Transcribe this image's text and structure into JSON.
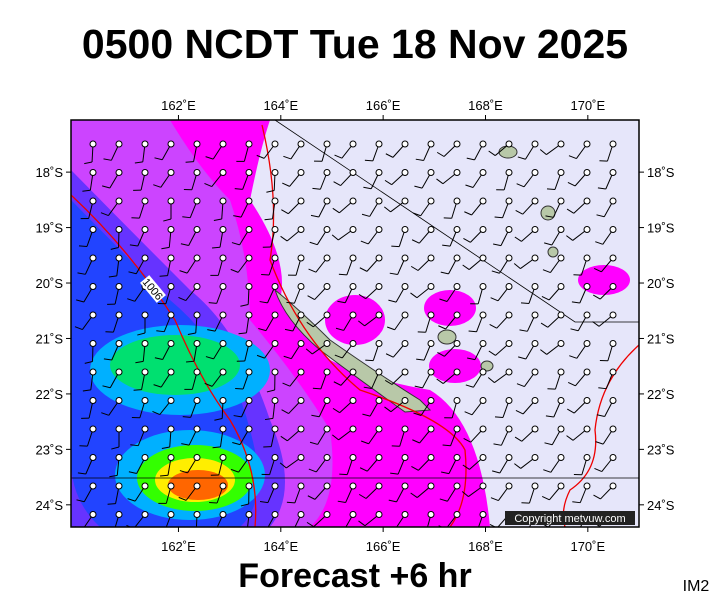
{
  "header": {
    "title": "0500 NCDT Tue 18 Nov 2025"
  },
  "map": {
    "xlim": [
      159.9,
      171
    ],
    "ylim": [
      -17.06,
      -24.4
    ],
    "lon_ticks": [
      {
        "value": 162,
        "label": "162˚E"
      },
      {
        "value": 164,
        "label": "164˚E"
      },
      {
        "value": 166,
        "label": "166˚E"
      },
      {
        "value": 168,
        "label": "168˚E"
      },
      {
        "value": 170,
        "label": "170˚E"
      }
    ],
    "lat_ticks": [
      {
        "value": -18,
        "label": "18˚S"
      },
      {
        "value": -19,
        "label": "19˚S"
      },
      {
        "value": -20,
        "label": "20˚S"
      },
      {
        "value": -21,
        "label": "21˚S"
      },
      {
        "value": -22,
        "label": "22˚S"
      },
      {
        "value": -23,
        "label": "23˚S"
      },
      {
        "value": -24,
        "label": "24˚S"
      }
    ],
    "contour_label": "1006",
    "copyright": "Copyright metvuw.com"
  },
  "footer": {
    "forecast": "Forecast +6 hr",
    "code": "IM2"
  }
}
